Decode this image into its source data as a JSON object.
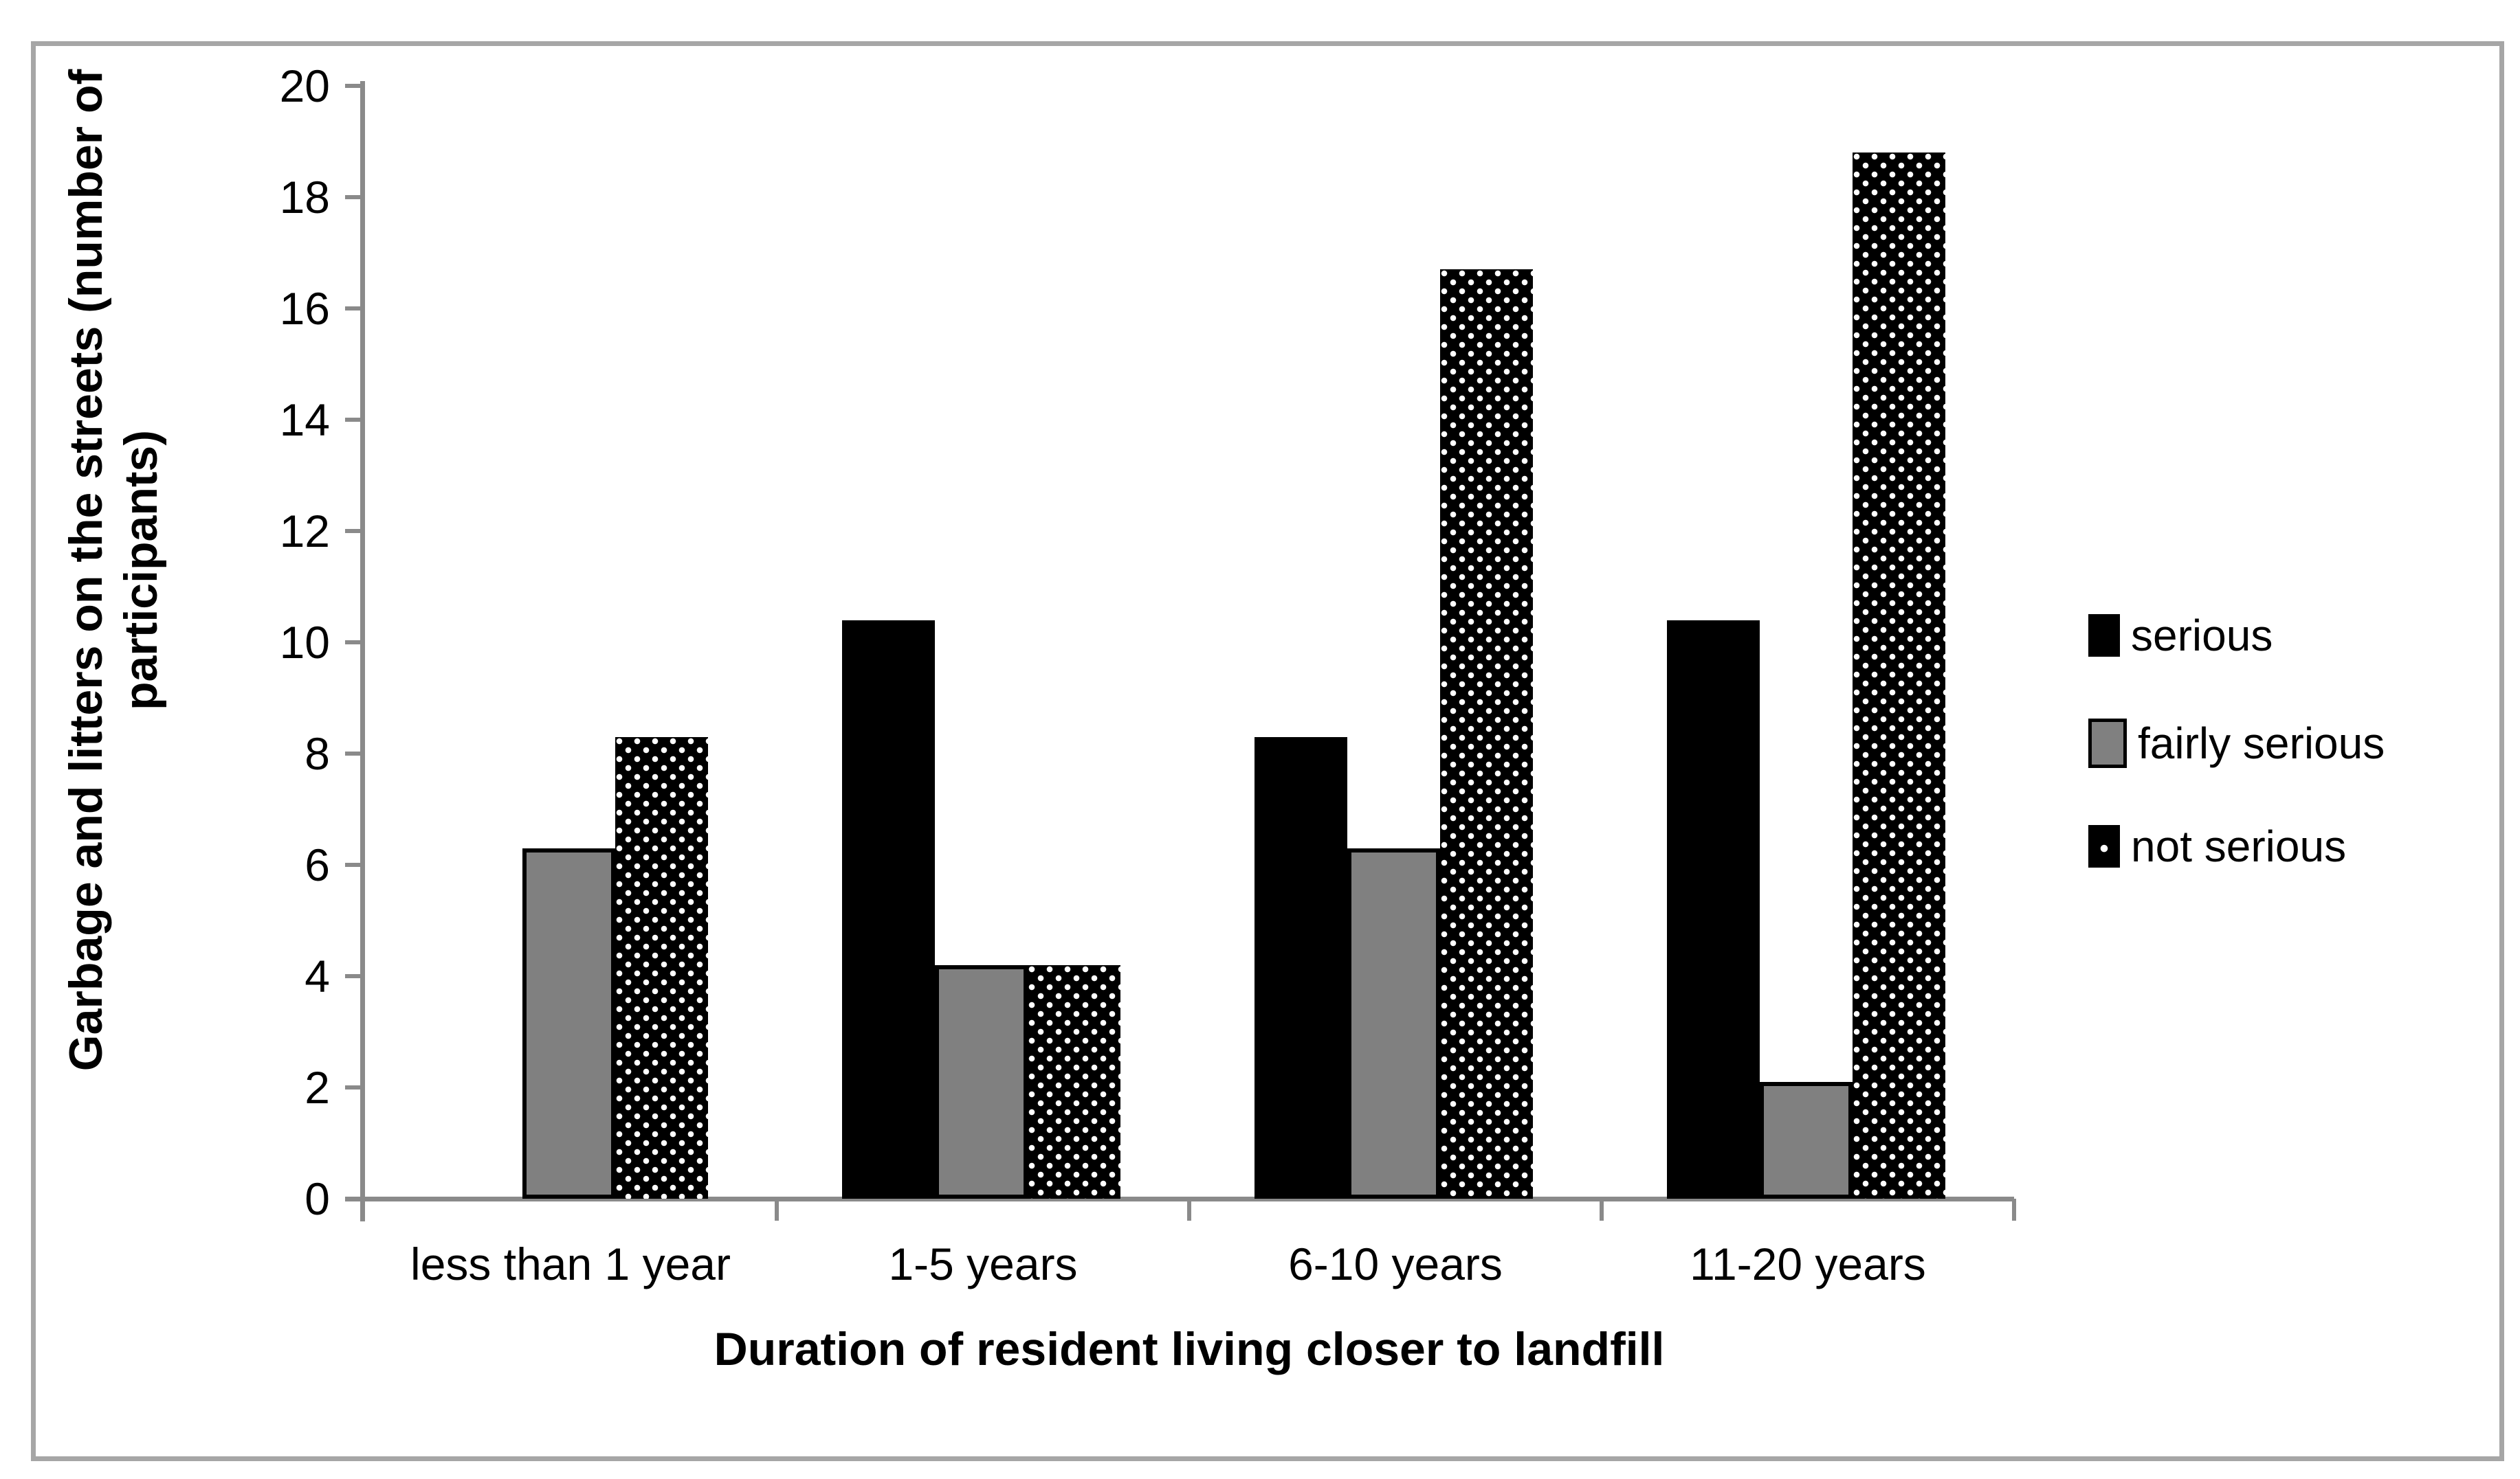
{
  "chart_data": {
    "type": "bar",
    "categories": [
      "less than 1 year",
      "1-5 years",
      "6-10 years",
      "11-20 years"
    ],
    "series": [
      {
        "name": "serious",
        "style": "solid-black",
        "color": "#000000",
        "values": [
          0,
          10.4,
          8.3,
          10.4
        ]
      },
      {
        "name": "fairly serious",
        "style": "solid-gray",
        "color": "#808080",
        "values": [
          6.3,
          4.2,
          6.3,
          2.1
        ]
      },
      {
        "name": "not serious",
        "style": "black-white-dots",
        "color": "#000000",
        "values": [
          8.3,
          4.2,
          16.7,
          18.8
        ]
      }
    ],
    "xlabel": "Duration of resident living closer to landfill",
    "ylabel": "Garbage and litters on the streets (number of participants)",
    "ylabel_lines": [
      "Garbage and litters on the streets (number of",
      "participants)"
    ],
    "ylim": [
      0,
      20
    ],
    "yticks": [
      0,
      2,
      4,
      6,
      8,
      10,
      12,
      14,
      16,
      18,
      20
    ],
    "grid": false,
    "legend_position": "right"
  },
  "colors": {
    "bar_black": "#000000",
    "bar_gray": "#808080",
    "axis_gray": "#8a8a8a",
    "frame_gray": "#a6a6a6",
    "background": "#ffffff"
  }
}
